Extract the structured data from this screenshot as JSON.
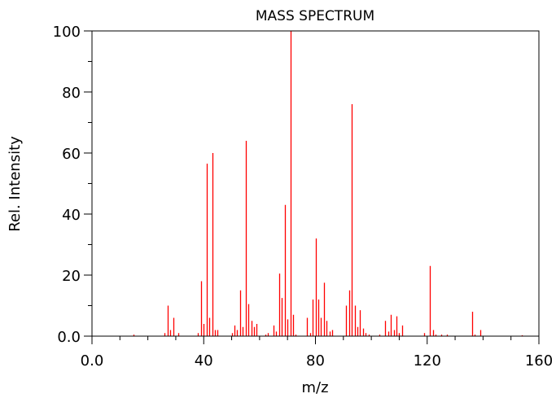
{
  "chart_data": {
    "type": "bar",
    "title": "MASS SPECTRUM",
    "xlabel": "m/z",
    "ylabel": "Rel. Intensity",
    "xlim": [
      0,
      160
    ],
    "ylim": [
      0,
      100
    ],
    "xticks": [
      "0.0",
      "40",
      "80",
      "120",
      "160"
    ],
    "yticks": [
      "0.0",
      "20",
      "40",
      "60",
      "80",
      "100"
    ],
    "grid": false,
    "legend": null,
    "bar_color": "#ff0000",
    "x": [
      15,
      26,
      27,
      28,
      29,
      31,
      38,
      39,
      40,
      41,
      42,
      43,
      44,
      45,
      50,
      51,
      52,
      53,
      54,
      55,
      56,
      57,
      58,
      59,
      62,
      63,
      65,
      66,
      67,
      68,
      69,
      70,
      71,
      72,
      73,
      77,
      78,
      79,
      80,
      81,
      82,
      83,
      84,
      85,
      86,
      91,
      92,
      93,
      94,
      95,
      96,
      97,
      98,
      99,
      103,
      105,
      106,
      107,
      108,
      109,
      110,
      111,
      119,
      121,
      122,
      123,
      125,
      127,
      136,
      137,
      139,
      154
    ],
    "values": [
      0.5,
      1,
      10,
      2,
      6,
      1,
      1,
      18,
      4,
      56.5,
      6,
      60,
      2,
      2,
      1,
      3.5,
      2,
      15,
      3,
      64,
      10.5,
      5,
      3,
      4,
      0.5,
      1,
      3.5,
      1.5,
      20.5,
      12.5,
      43,
      5.5,
      100,
      7,
      0.5,
      6,
      1,
      12,
      32,
      12,
      6,
      17.5,
      5,
      1.5,
      2,
      10,
      15,
      76,
      10,
      3,
      8.5,
      2.5,
      1,
      0.5,
      0.5,
      5,
      1.5,
      7,
      2,
      6.5,
      1,
      3.5,
      1,
      23,
      2,
      0.5,
      0.5,
      0.5,
      8,
      0.5,
      2,
      0.3
    ]
  }
}
